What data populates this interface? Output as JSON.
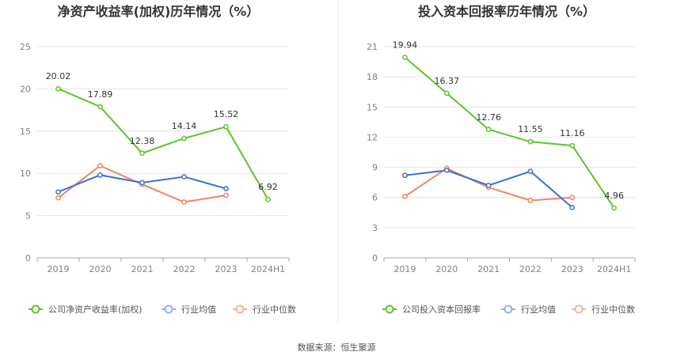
{
  "footer": {
    "source": "数据来源：恒生聚源"
  },
  "colors": {
    "main": "#5cc42a",
    "avg": "#3a6fd8",
    "median": "#f0855e",
    "grid": "#e6e6e6",
    "axis": "#aaaaaa"
  },
  "chart_data": [
    {
      "type": "line",
      "title": "净资产收益率(加权)历年情况（%）",
      "categories": [
        "2019",
        "2020",
        "2021",
        "2022",
        "2023",
        "2024H1"
      ],
      "y_ticks": [
        "0",
        "5",
        "10",
        "15",
        "20",
        "25"
      ],
      "ylim": [
        0,
        25
      ],
      "legend_position": "bottom",
      "series": [
        {
          "name": "公司净资产收益率(加权)",
          "values": [
            20.02,
            17.89,
            12.38,
            14.14,
            15.52,
            6.92
          ],
          "labels": [
            "20.02",
            "17.89",
            "12.38",
            "14.14",
            "15.52",
            "6.92"
          ],
          "color": "#5cc42a"
        },
        {
          "name": "行业均值",
          "values": [
            7.8,
            9.8,
            8.9,
            9.6,
            8.2,
            null
          ],
          "color": "#3a6fd8"
        },
        {
          "name": "行业中位数",
          "values": [
            7.1,
            10.9,
            8.7,
            6.6,
            7.4,
            null
          ],
          "color": "#f0855e"
        }
      ]
    },
    {
      "type": "line",
      "title": "投入资本回报率历年情况（%）",
      "categories": [
        "2019",
        "2020",
        "2021",
        "2022",
        "2023",
        "2024H1"
      ],
      "y_ticks": [
        "0",
        "3",
        "6",
        "9",
        "12",
        "15",
        "18",
        "21"
      ],
      "ylim": [
        0,
        21
      ],
      "legend_position": "bottom",
      "series": [
        {
          "name": "公司投入资本回报率",
          "values": [
            19.94,
            16.37,
            12.76,
            11.55,
            11.16,
            4.96
          ],
          "labels": [
            "19.94",
            "16.37",
            "12.76",
            "11.55",
            "11.16",
            "4.96"
          ],
          "color": "#5cc42a"
        },
        {
          "name": "行业均值",
          "values": [
            8.2,
            8.7,
            7.2,
            8.6,
            5.0,
            null
          ],
          "color": "#3a6fd8"
        },
        {
          "name": "行业中位数",
          "values": [
            6.1,
            8.9,
            7.0,
            5.7,
            6.0,
            null
          ],
          "color": "#f0855e"
        }
      ]
    }
  ]
}
